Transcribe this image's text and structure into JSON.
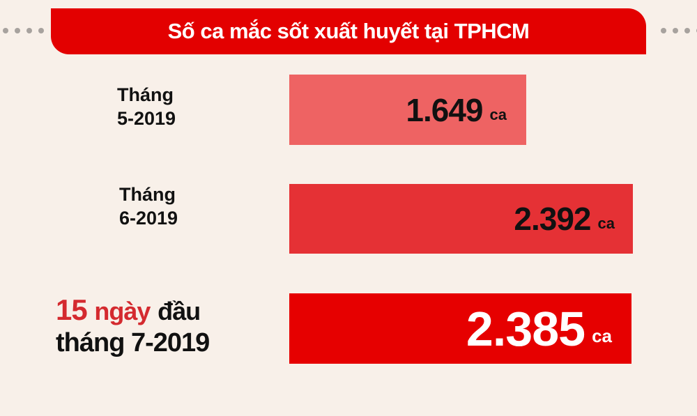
{
  "title": "Số ca mắc sốt xuất huyết tại TPHCM",
  "chart_data": {
    "type": "bar",
    "orientation": "horizontal",
    "title": "Số ca mắc sốt xuất huyết tại TPHCM",
    "categories": [
      "Tháng 5-2019",
      "Tháng 6-2019",
      "15 ngày đầu tháng 7-2019"
    ],
    "values": [
      1649,
      2392,
      2385
    ],
    "value_labels": [
      "1.649",
      "2.392",
      "2.385"
    ],
    "unit": "ca",
    "colors": [
      "#ee6363",
      "#e53135",
      "#e60000"
    ],
    "grid": false
  },
  "labels": {
    "row1": {
      "line1": "Tháng",
      "line2": "5-2019"
    },
    "row2": {
      "line1": "Tháng",
      "line2": "6-2019"
    },
    "row3": {
      "num": "15",
      "days": "ngày",
      "first": "đầu",
      "line2": "tháng 7-2019"
    }
  }
}
